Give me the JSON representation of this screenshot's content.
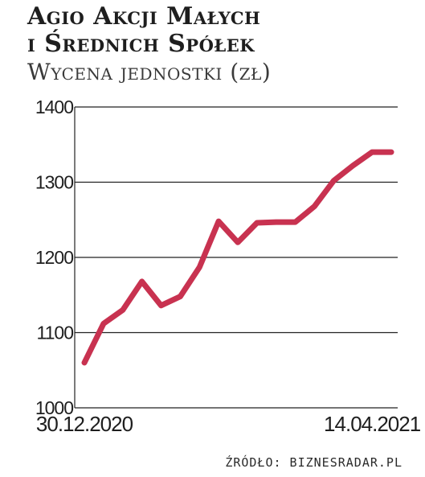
{
  "header": {
    "title_line1": "Agio Akcji Małych",
    "title_line2": "i Średnich Spółek",
    "subtitle": "Wycena jednostki (zł)"
  },
  "source": "ŹRÓDŁO: BIZNESRADAR.PL",
  "colors": {
    "line": "#c83250",
    "grid": "#222222",
    "text": "#1e1e1e"
  },
  "chart_data": {
    "type": "line",
    "title": "Agio Akcji Małych i Średnich Spółek",
    "subtitle": "Wycena jednostki (zł)",
    "xlabel": "",
    "ylabel": "",
    "ylim": [
      1000,
      1400
    ],
    "yticks": [
      1000,
      1100,
      1200,
      1300,
      1400
    ],
    "grid": true,
    "legend": "none",
    "x_labels": [
      "30.12.2020",
      "14.04.2021"
    ],
    "x_label_positions": [
      0,
      15
    ],
    "x": [
      0,
      1,
      2,
      3,
      4,
      5,
      6,
      7,
      8,
      9,
      10,
      11,
      12,
      13,
      14,
      15,
      16
    ],
    "series": [
      {
        "name": "",
        "values": [
          1060,
          1112,
          1130,
          1168,
          1136,
          1148,
          1187,
          1248,
          1220,
          1246,
          1247,
          1247,
          1268,
          1302,
          1322,
          1340,
          1340
        ]
      }
    ]
  }
}
